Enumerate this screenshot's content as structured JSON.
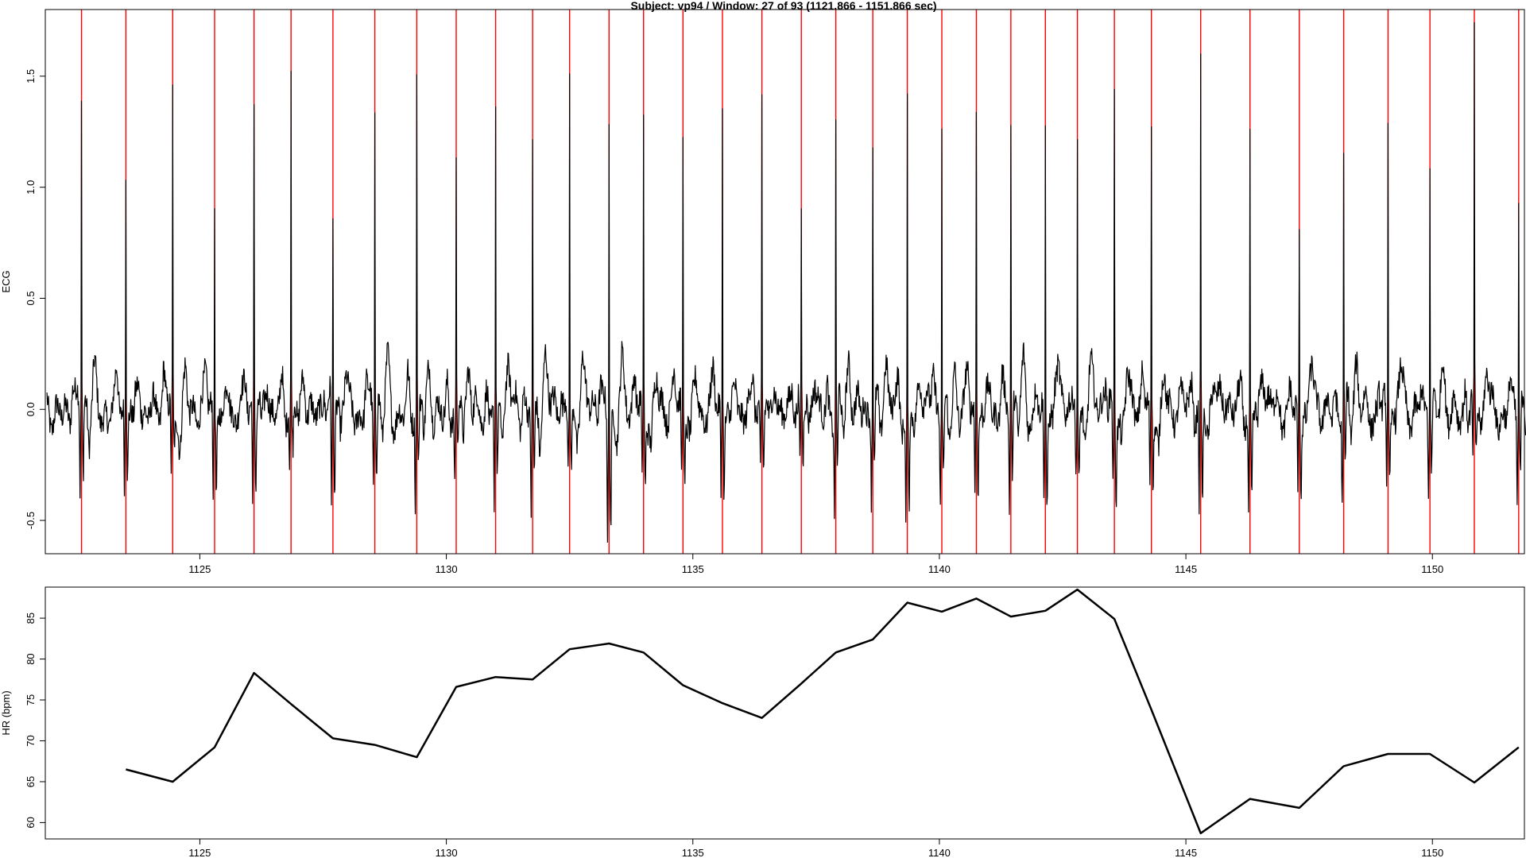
{
  "title": "Subject: vp94 / Window: 27 of 93 (1121.866 - 1151.866 sec)",
  "chart_data": [
    {
      "type": "line",
      "ylabel": "ECG",
      "xlim": [
        1121.866,
        1151.866
      ],
      "ylim": [
        -0.65,
        1.8
      ],
      "x_ticks": [
        1125,
        1130,
        1135,
        1140,
        1145,
        1150
      ],
      "y_ticks": [
        -0.5,
        0.0,
        0.5,
        1.0,
        1.5
      ],
      "y_tick_labels": [
        "-0.5",
        "0.0",
        "0.5",
        "1.0",
        "1.5"
      ],
      "signal_range": [
        1121.9,
        1151.9
      ],
      "signal_color": "#000000",
      "marker_color": "#ff0000",
      "r_peaks": [
        {
          "t": 1122.6,
          "amp": 1.38,
          "min": -0.39
        },
        {
          "t": 1123.5,
          "amp": 1.05,
          "min": -0.37
        },
        {
          "t": 1124.45,
          "amp": 1.37,
          "min": -0.32
        },
        {
          "t": 1125.3,
          "amp": 0.92,
          "min": -0.4
        },
        {
          "t": 1126.1,
          "amp": 1.33,
          "min": -0.41
        },
        {
          "t": 1126.85,
          "amp": 1.42,
          "min": -0.29
        },
        {
          "t": 1127.7,
          "amp": 0.81,
          "min": -0.48
        },
        {
          "t": 1128.55,
          "amp": 1.32,
          "min": -0.32
        },
        {
          "t": 1129.4,
          "amp": 1.46,
          "min": -0.43
        },
        {
          "t": 1130.2,
          "amp": 1.07,
          "min": -0.36
        },
        {
          "t": 1131.0,
          "amp": 1.26,
          "min": -0.46
        },
        {
          "t": 1131.75,
          "amp": 1.2,
          "min": -0.44
        },
        {
          "t": 1132.5,
          "amp": 1.54,
          "min": -0.29
        },
        {
          "t": 1133.3,
          "amp": 1.33,
          "min": -0.57
        },
        {
          "t": 1134.0,
          "amp": 1.27,
          "min": -0.42
        },
        {
          "t": 1134.8,
          "amp": 1.25,
          "min": -0.37
        },
        {
          "t": 1135.6,
          "amp": 1.32,
          "min": -0.42
        },
        {
          "t": 1136.4,
          "amp": 1.36,
          "min": -0.34
        },
        {
          "t": 1137.2,
          "amp": 0.88,
          "min": -0.34
        },
        {
          "t": 1137.9,
          "amp": 1.27,
          "min": -0.44
        },
        {
          "t": 1138.65,
          "amp": 1.24,
          "min": -0.35
        },
        {
          "t": 1139.35,
          "amp": 1.37,
          "min": -0.51
        },
        {
          "t": 1140.05,
          "amp": 1.3,
          "min": -0.35
        },
        {
          "t": 1140.75,
          "amp": 1.32,
          "min": -0.41
        },
        {
          "t": 1141.45,
          "amp": 1.33,
          "min": -0.38
        },
        {
          "t": 1142.15,
          "amp": 1.28,
          "min": -0.46
        },
        {
          "t": 1142.8,
          "amp": 1.33,
          "min": -0.33
        },
        {
          "t": 1143.55,
          "amp": 1.4,
          "min": -0.41
        },
        {
          "t": 1144.3,
          "amp": 1.23,
          "min": -0.42
        },
        {
          "t": 1145.3,
          "amp": 1.61,
          "min": -0.48
        },
        {
          "t": 1146.3,
          "amp": 1.25,
          "min": -0.45
        },
        {
          "t": 1147.3,
          "amp": 0.88,
          "min": -0.37
        },
        {
          "t": 1148.2,
          "amp": 1.09,
          "min": -0.41
        },
        {
          "t": 1149.1,
          "amp": 1.3,
          "min": -0.36
        },
        {
          "t": 1149.95,
          "amp": 1.19,
          "min": -0.34
        },
        {
          "t": 1150.85,
          "amp": 1.66,
          "min": -0.32
        },
        {
          "t": 1151.75,
          "amp": 0.95,
          "min": -0.36
        }
      ]
    },
    {
      "type": "line",
      "ylabel": "HR (bpm)",
      "xlim": [
        1121.866,
        1151.866
      ],
      "ylim": [
        58,
        88.8
      ],
      "x_ticks": [
        1125,
        1130,
        1135,
        1140,
        1145,
        1150
      ],
      "y_ticks": [
        60,
        65,
        70,
        75,
        80,
        85
      ],
      "series": [
        {
          "x": [
            1123.5,
            1124.45,
            1125.3,
            1126.1,
            1126.85,
            1127.7,
            1128.55,
            1129.4,
            1130.2,
            1131.0,
            1131.75,
            1132.5,
            1133.3,
            1134.0,
            1134.8,
            1135.6,
            1136.4,
            1137.2,
            1137.9,
            1138.65,
            1139.35,
            1140.05,
            1140.75,
            1141.45,
            1142.15,
            1142.8,
            1143.55,
            1144.3,
            1145.3,
            1146.3,
            1147.3,
            1148.2,
            1149.1,
            1149.95,
            1150.85,
            1151.75
          ],
          "y": [
            66.5,
            65.0,
            69.2,
            78.3,
            74.5,
            70.3,
            69.5,
            68.0,
            76.6,
            77.8,
            77.5,
            81.2,
            81.9,
            80.8,
            76.8,
            74.6,
            72.8,
            77.0,
            80.8,
            82.4,
            86.9,
            85.8,
            87.4,
            85.2,
            85.9,
            88.5,
            84.9,
            73.8,
            58.7,
            62.9,
            61.8,
            66.9,
            68.4,
            68.4,
            64.9,
            69.2
          ]
        }
      ]
    }
  ]
}
